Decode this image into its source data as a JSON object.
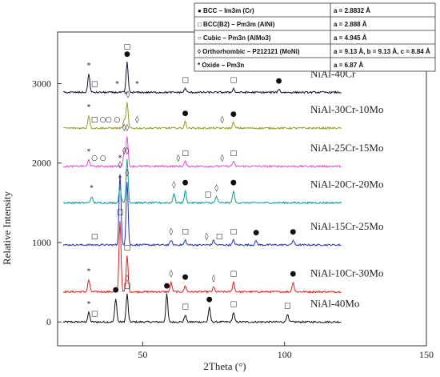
{
  "chart_data": {
    "type": "line",
    "xlabel": "2Theta (°)",
    "ylabel": "Relative Intensity",
    "xlim": [
      20,
      150
    ],
    "ylim": [
      -300,
      3650
    ],
    "x_ticks": [
      50,
      100,
      150
    ],
    "y_ticks": [
      0,
      1000,
      2000,
      3000
    ],
    "grid": false,
    "legend_position": "top-right",
    "legend": [
      {
        "symbol": "●",
        "name": "BCC – Im3m (Cr)",
        "param": "a = 2.8832 Å"
      },
      {
        "symbol": "□",
        "name": "BCC(B2) – Pm3m (AlNi)",
        "param": "a = 2.888 Å"
      },
      {
        "symbol": "○",
        "name": "Cubic – Pm3n (AlMo3)",
        "param": "a = 4.945 Å"
      },
      {
        "symbol": "◊",
        "name": "Orthorhombic – P212121 (MoNi)",
        "param": "a = 9.13 Å, b = 9.13 Å, c = 8.84 Å"
      },
      {
        "symbol": "*",
        "name": "Oxide – Pm3n",
        "param": "a = 6.87 Å"
      }
    ],
    "series": [
      {
        "name": "NiAl-40Mo",
        "baseline": 0,
        "color": "#111111",
        "peaks": [
          [
            31,
            120
          ],
          [
            40.5,
            300
          ],
          [
            44.5,
            350
          ],
          [
            58.5,
            350
          ],
          [
            65,
            90
          ],
          [
            73.5,
            180
          ],
          [
            82,
            120
          ],
          [
            101,
            100
          ]
        ],
        "markers": [
          [
            31,
            "*"
          ],
          [
            33,
            "□"
          ],
          [
            40.5,
            "●"
          ],
          [
            44.5,
            "□"
          ],
          [
            44.5,
            "◊"
          ],
          [
            58.5,
            "●"
          ],
          [
            65,
            "□"
          ],
          [
            73.5,
            "●"
          ],
          [
            82,
            "□"
          ],
          [
            101,
            "□"
          ]
        ]
      },
      {
        "name": "NiAl-10Cr-30Mo",
        "baseline": 380,
        "color": "#e02020",
        "peaks": [
          [
            31,
            150
          ],
          [
            42,
            900
          ],
          [
            44.5,
            450
          ],
          [
            60,
            120
          ],
          [
            65,
            80
          ],
          [
            75,
            60
          ],
          [
            82,
            120
          ],
          [
            103,
            120
          ]
        ],
        "markers": [
          [
            31,
            "*"
          ],
          [
            42,
            "□"
          ],
          [
            44.5,
            "□"
          ],
          [
            60,
            "◊"
          ],
          [
            65,
            "●"
          ],
          [
            75,
            "◊"
          ],
          [
            82,
            "□"
          ],
          [
            103,
            "●"
          ]
        ]
      },
      {
        "name": "NiAl-15Cr-25Mo",
        "baseline": 970,
        "color": "#2233bb",
        "peaks": [
          [
            42,
            900
          ],
          [
            44.5,
            800
          ],
          [
            60,
            60
          ],
          [
            65,
            60
          ],
          [
            75,
            60
          ],
          [
            82,
            60
          ],
          [
            90,
            50
          ],
          [
            103,
            60
          ]
        ],
        "markers": [
          [
            33,
            "□"
          ],
          [
            42,
            "◊"
          ],
          [
            44.5,
            "◊"
          ],
          [
            60,
            "◊"
          ],
          [
            65,
            "□"
          ],
          [
            72.5,
            "◊"
          ],
          [
            77,
            "□"
          ],
          [
            82,
            "□"
          ],
          [
            90,
            "●"
          ],
          [
            103,
            "●"
          ]
        ]
      },
      {
        "name": "NiAl-20Cr-20Mo",
        "baseline": 1500,
        "color": "#119999",
        "peaks": [
          [
            32,
            80
          ],
          [
            42,
            200
          ],
          [
            44.5,
            550
          ],
          [
            61,
            120
          ],
          [
            65,
            150
          ],
          [
            76,
            80
          ],
          [
            82,
            150
          ]
        ],
        "markers": [
          [
            32,
            "*"
          ],
          [
            42,
            "*"
          ],
          [
            43.5,
            "◊"
          ],
          [
            44.5,
            "◊"
          ],
          [
            61,
            "◊"
          ],
          [
            65,
            "●"
          ],
          [
            73,
            "□"
          ],
          [
            76,
            "◊"
          ],
          [
            82,
            "●"
          ]
        ]
      },
      {
        "name": "NiAl-25Cr-15Mo",
        "baseline": 1960,
        "color": "#ee44dd",
        "peaks": [
          [
            31,
            80
          ],
          [
            43.5,
            200
          ],
          [
            44.5,
            380
          ],
          [
            65,
            60
          ],
          [
            82,
            60
          ]
        ],
        "markers": [
          [
            31,
            "*"
          ],
          [
            33,
            "○"
          ],
          [
            36,
            "○"
          ],
          [
            42,
            "*"
          ],
          [
            43.5,
            "◊"
          ],
          [
            44.5,
            "◊"
          ],
          [
            62.5,
            "◊"
          ],
          [
            65,
            "□"
          ],
          [
            78,
            "◊"
          ],
          [
            82,
            "□"
          ]
        ]
      },
      {
        "name": "NiAl-30Cr-10Mo",
        "baseline": 2440,
        "color": "#999922",
        "peaks": [
          [
            31,
            160
          ],
          [
            43.5,
            100
          ],
          [
            44.5,
            320
          ],
          [
            65,
            80
          ],
          [
            82,
            70
          ]
        ],
        "markers": [
          [
            31,
            "*"
          ],
          [
            33,
            "□"
          ],
          [
            36,
            "○"
          ],
          [
            38,
            "○"
          ],
          [
            41,
            "○"
          ],
          [
            44,
            "*"
          ],
          [
            44.8,
            "◊"
          ],
          [
            48,
            "◊"
          ],
          [
            65,
            "●"
          ],
          [
            78,
            "◊"
          ],
          [
            82,
            "●"
          ]
        ]
      },
      {
        "name": "NiAl-40Cr",
        "baseline": 2890,
        "color": "#111133",
        "peaks": [
          [
            31,
            230
          ],
          [
            44.5,
            380
          ],
          [
            65,
            50
          ],
          [
            82,
            50
          ],
          [
            98,
            40
          ]
        ],
        "markers": [
          [
            31,
            "*"
          ],
          [
            33,
            "□"
          ],
          [
            41,
            "*"
          ],
          [
            44.5,
            "●"
          ],
          [
            44.5,
            "□"
          ],
          [
            48,
            "*"
          ],
          [
            65,
            "□"
          ],
          [
            82,
            "□"
          ],
          [
            98,
            "●"
          ]
        ]
      }
    ]
  }
}
